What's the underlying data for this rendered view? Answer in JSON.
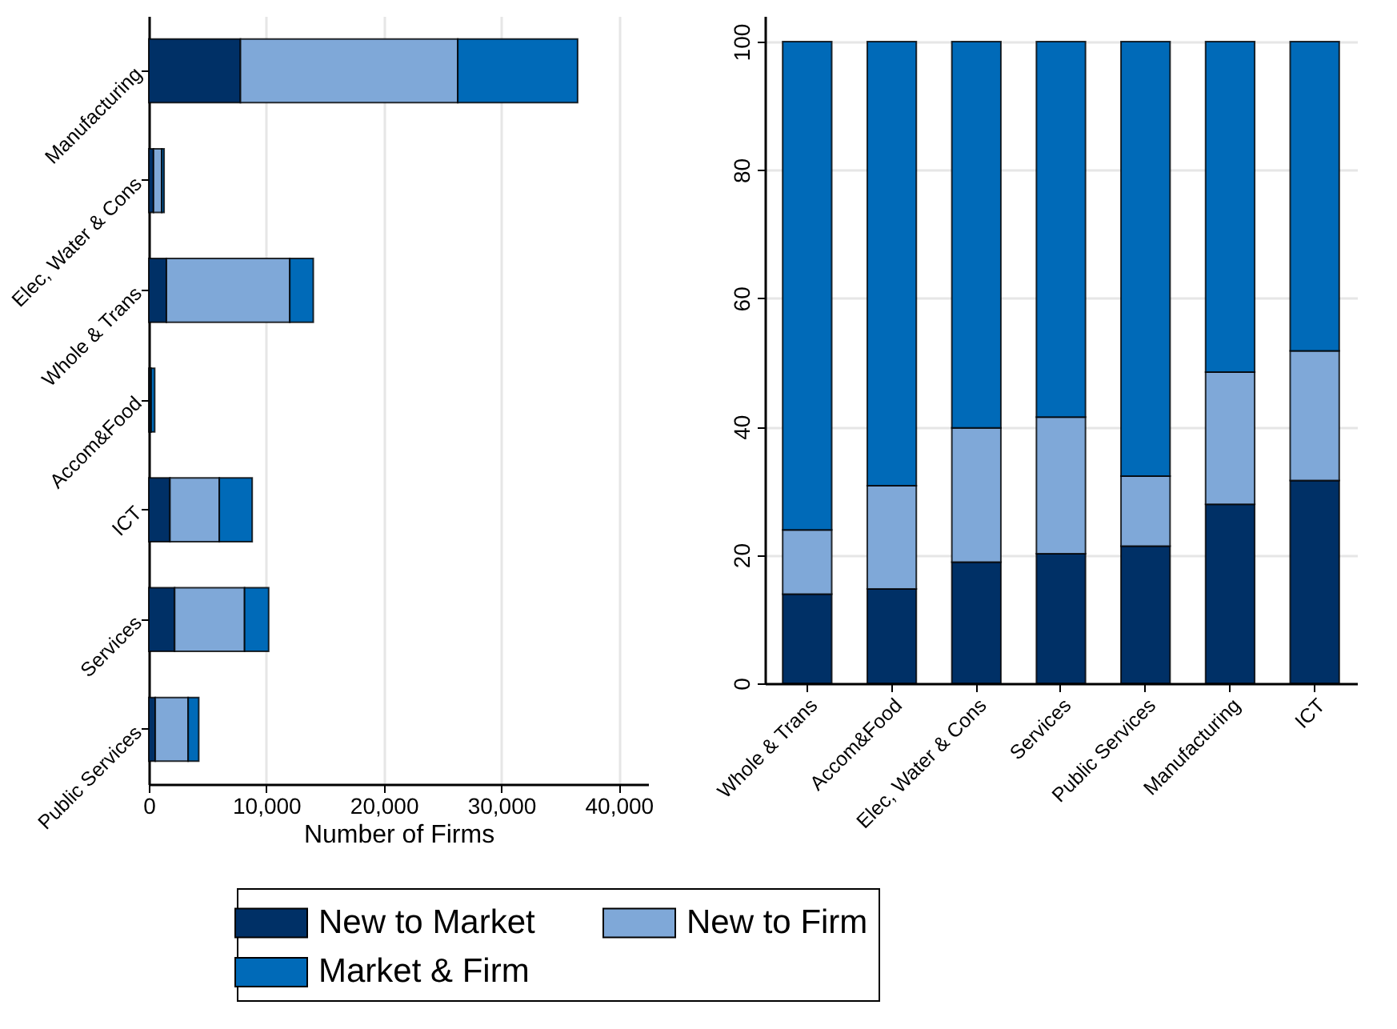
{
  "chart_data": [
    {
      "type": "bar",
      "orientation": "horizontal",
      "stacked": true,
      "xlabel": "Number of Firms",
      "categories": [
        "Manufacturing",
        "Elec, Water & Cons",
        "Whole & Trans",
        "Accom&Food",
        "ICT",
        "Services",
        "Public Services"
      ],
      "series": [
        {
          "name": "New to Market",
          "color": "#003066",
          "values": [
            7800,
            400,
            1500,
            100,
            1800,
            2200,
            550
          ]
        },
        {
          "name": "New to Firm",
          "color": "#7fa8d8",
          "values": [
            18500,
            700,
            10500,
            100,
            4200,
            5950,
            2800
          ]
        },
        {
          "name": "Market & Firm",
          "color": "#006ab8",
          "values": [
            10200,
            200,
            2000,
            300,
            2800,
            2050,
            900
          ]
        }
      ],
      "xlim": [
        0,
        42500
      ],
      "xticks": [
        0,
        {
          "value": 10000,
          "label": "10,000"
        },
        {
          "value": 20000,
          "label": "20,000"
        },
        {
          "value": 30000,
          "label": "30,000"
        },
        {
          "value": 40000,
          "label": "40,000"
        }
      ],
      "grid": "x",
      "legend": "bottom"
    },
    {
      "type": "bar",
      "stacked": true,
      "categories": [
        "Whole & Trans",
        "Accom&Food",
        "Elec, Water & Cons",
        "Services",
        "Public Services",
        "Manufacturing",
        "ICT"
      ],
      "series": [
        {
          "name": "New to Market",
          "color": "#003066",
          "values": [
            13.9,
            14.7,
            18.9,
            20.2,
            21.4,
            27.9,
            31.6
          ]
        },
        {
          "name": "New to Firm",
          "color": "#7fa8d8",
          "values": [
            10,
            16.1,
            20.9,
            21.3,
            10.9,
            20.6,
            20.2
          ]
        },
        {
          "name": "Market & Firm",
          "color": "#006ab8",
          "values": [
            76.1,
            69.2,
            60.2,
            58.5,
            67.7,
            51.5,
            48.2
          ]
        }
      ],
      "ylim": [
        0,
        104
      ],
      "yticks": [
        0,
        20,
        40,
        60,
        80,
        100
      ],
      "grid": "y"
    }
  ]
}
